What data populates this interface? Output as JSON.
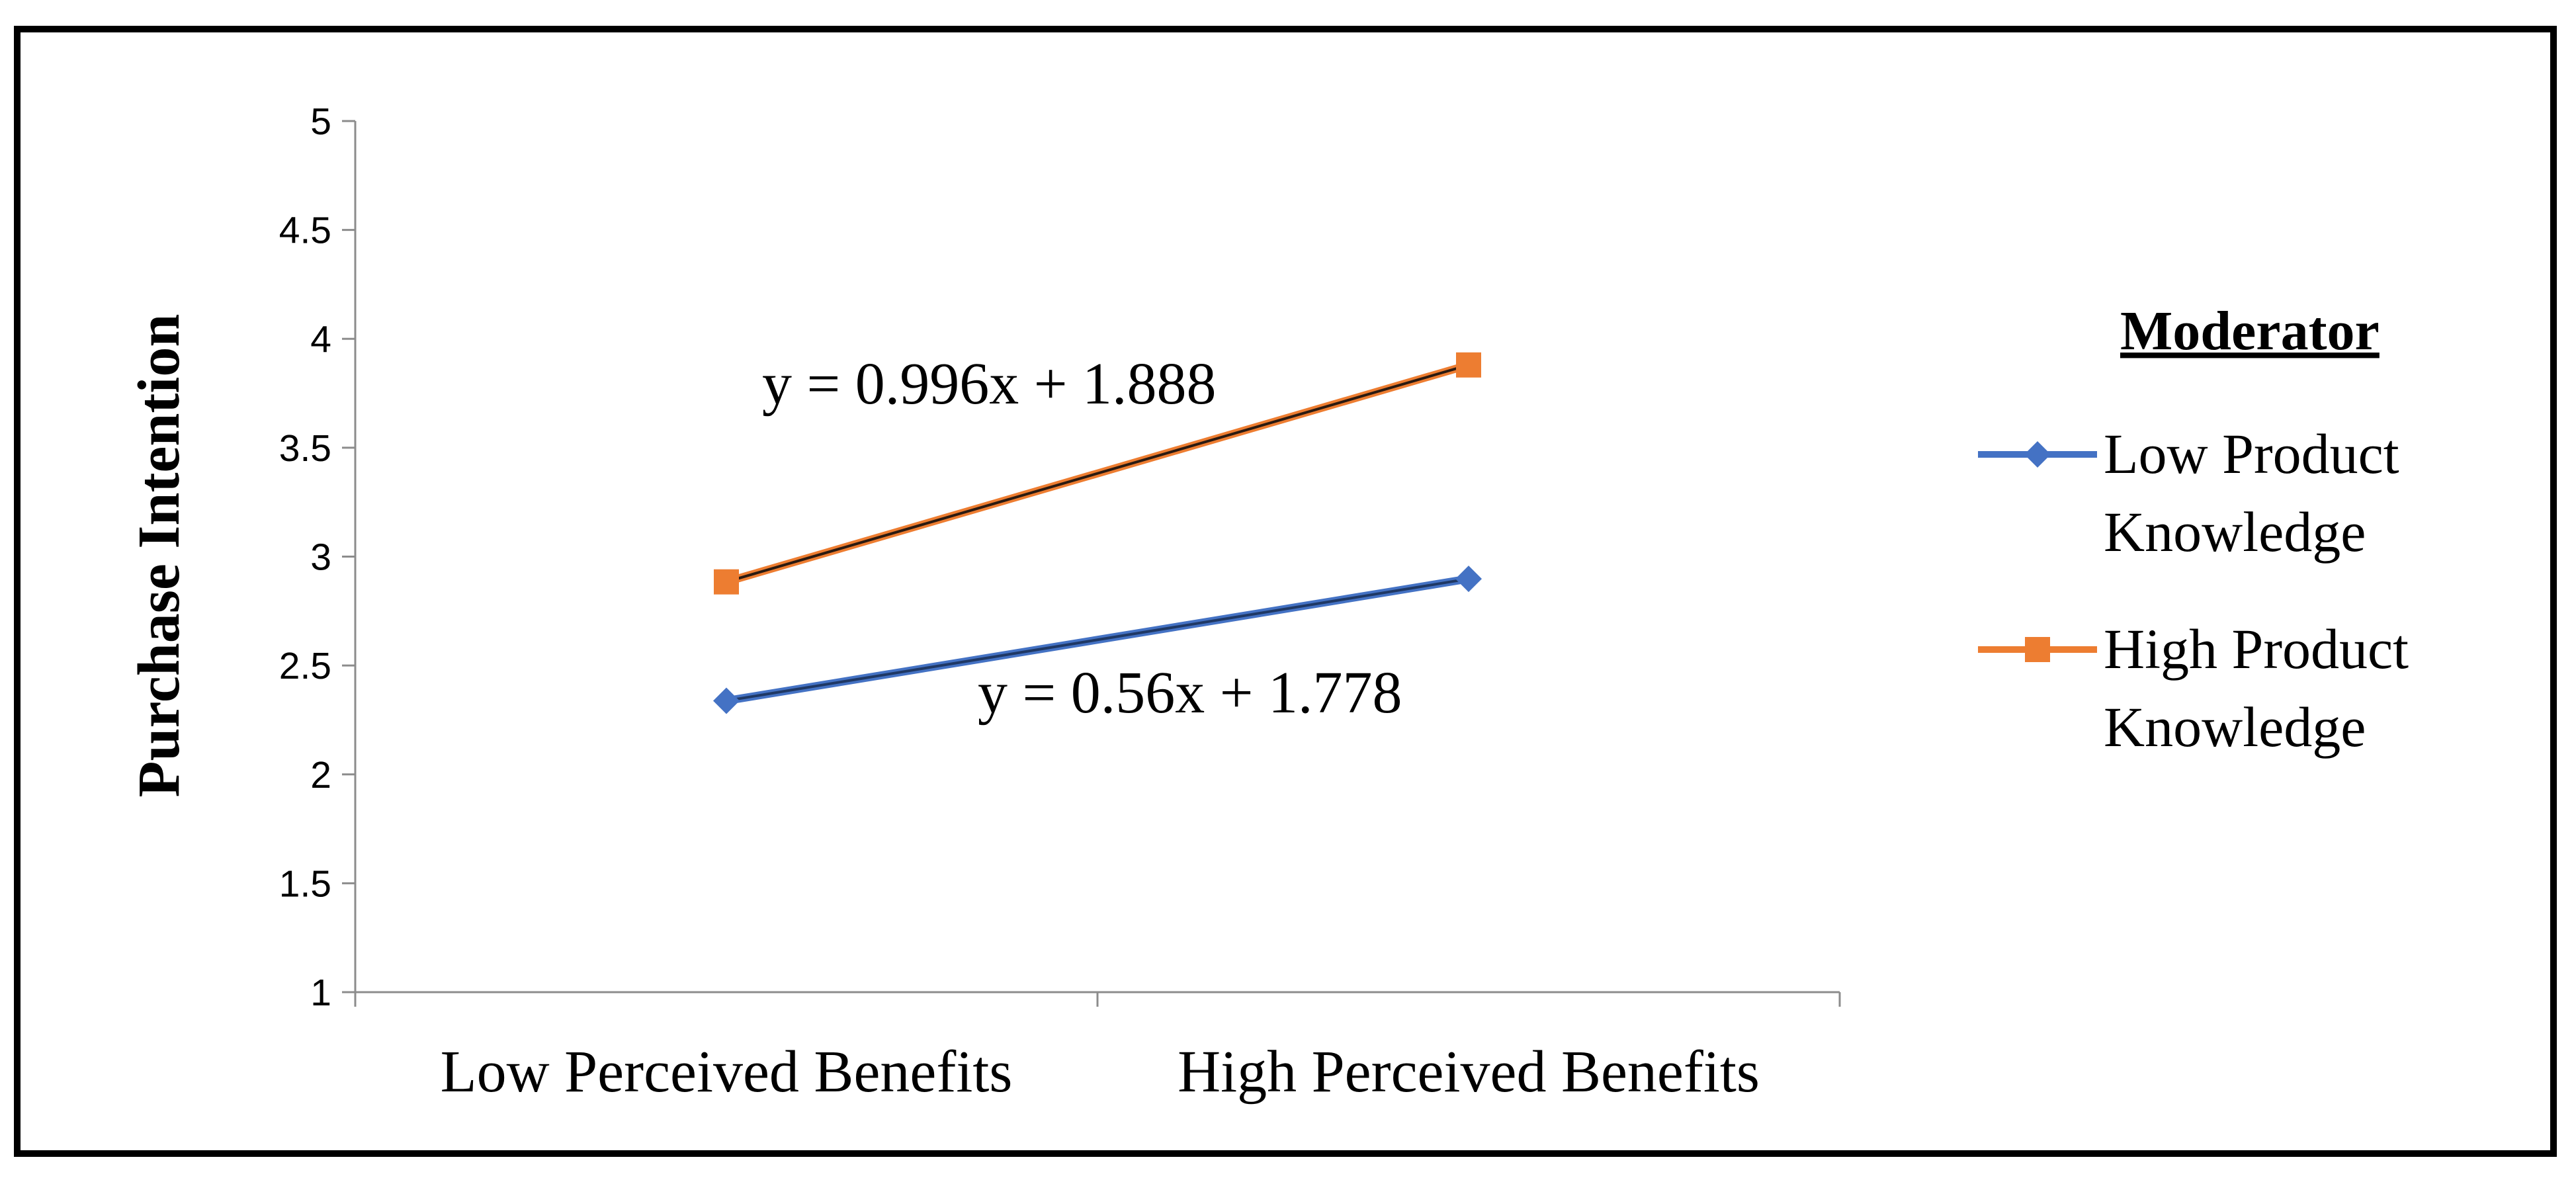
{
  "chart_data": {
    "type": "line",
    "title": "",
    "xlabel": "",
    "ylabel": "Purchase Intention",
    "ylim": [
      1,
      5
    ],
    "yticks": [
      "1",
      "1.5",
      "2",
      "2.5",
      "3",
      "3.5",
      "4",
      "4.5",
      "5"
    ],
    "grid": false,
    "categories": [
      "Low Perceived Benefits",
      "High Perceived Benefits"
    ],
    "series": [
      {
        "name": "Low Product Knowledge",
        "name_lines": [
          "Low Product",
          "Knowledge"
        ],
        "values": [
          2.338,
          2.898
        ],
        "color": "#4472C4",
        "trendline_color": "#1F3864",
        "marker": "diamond",
        "equation": "y = 0.56x + 1.778"
      },
      {
        "name": "High Product Knowledge",
        "name_lines": [
          "High Product",
          "Knowledge"
        ],
        "values": [
          2.884,
          3.88
        ],
        "color": "#ED7D31",
        "trendline_color": "#2B1A10",
        "marker": "square",
        "equation": "y = 0.996x + 1.888"
      }
    ],
    "legend": {
      "title": "Moderator",
      "position": "right"
    }
  }
}
